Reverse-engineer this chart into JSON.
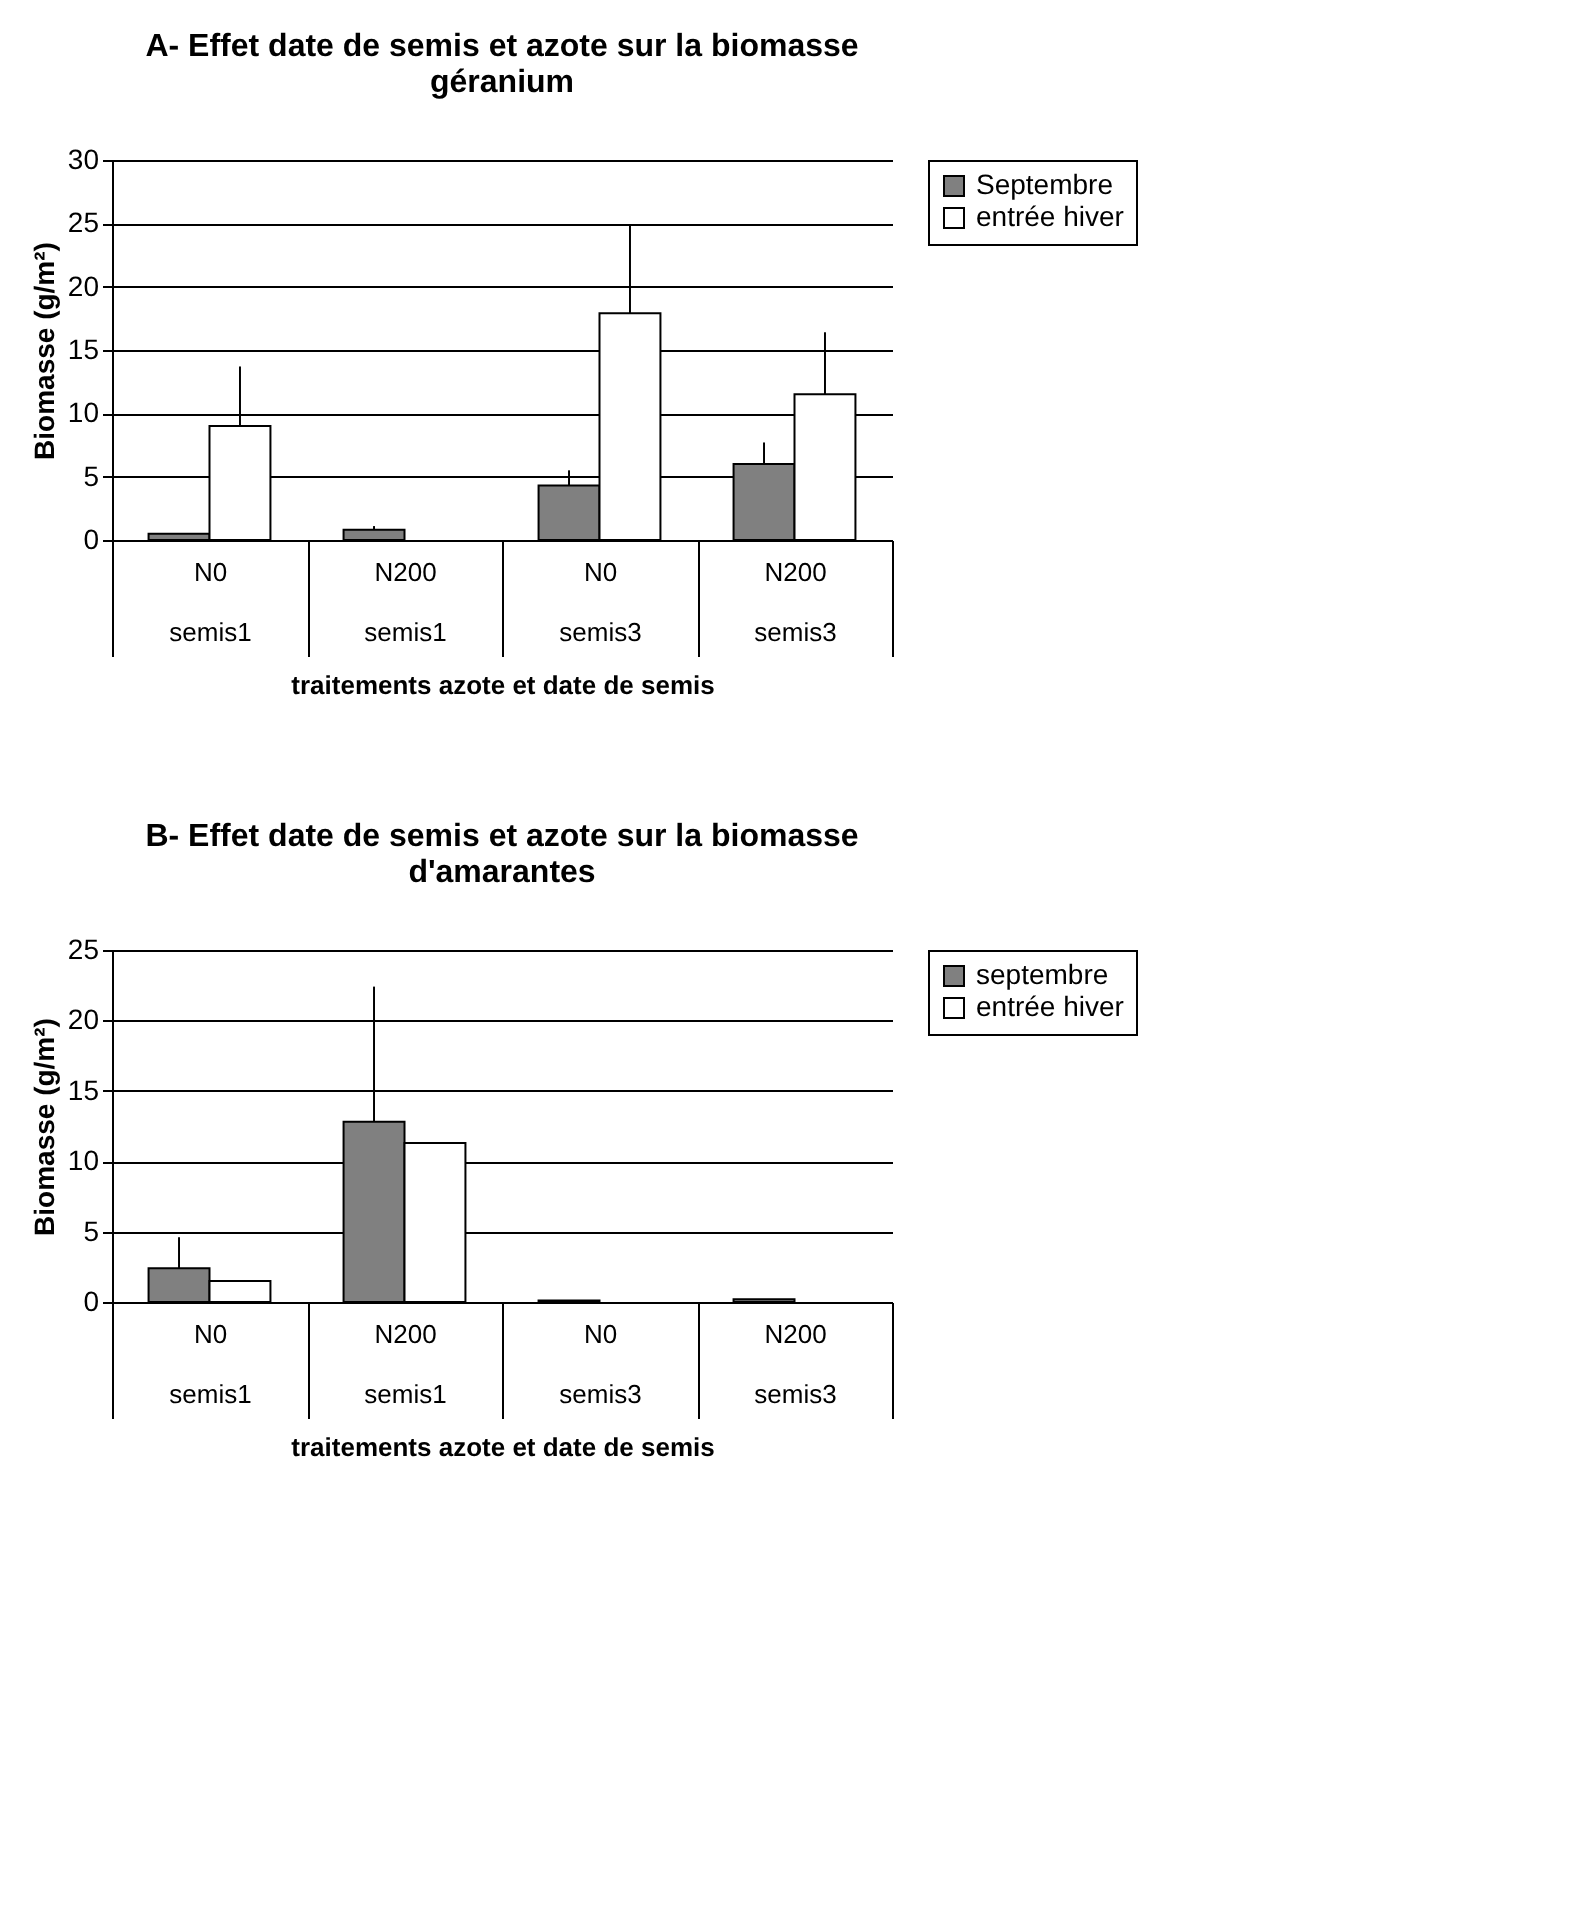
{
  "chart_data": [
    {
      "type": "bar",
      "title": "A- Effet date de semis et azote sur la biomasse géranium",
      "xlabel": "traitements azote et date de semis",
      "ylabel": "Biomasse (g/m²)",
      "categories": [
        "N0\nsemis1",
        "N200\nsemis1",
        "N0\nsemis3",
        "N200\nsemis3"
      ],
      "series": [
        {
          "name": "Septembre",
          "color": "#808080",
          "values": [
            0.5,
            0.8,
            4.3,
            6
          ],
          "errors": [
            null,
            [
              0.8,
              1.1
            ],
            [
              4.3,
              5.5
            ],
            [
              6,
              7.7
            ]
          ]
        },
        {
          "name": "entrée hiver",
          "color": "#ffffff",
          "values": [
            9,
            0,
            17.9,
            11.5
          ],
          "errors": [
            [
              9,
              13.7
            ],
            null,
            [
              17.9,
              24.8
            ],
            [
              11.5,
              16.4
            ]
          ]
        }
      ],
      "ylim": [
        0,
        30
      ],
      "yticks": [
        0,
        5,
        10,
        15,
        20,
        25,
        30
      ],
      "grid": "y",
      "legend": "right"
    },
    {
      "type": "bar",
      "title": "B- Effet date de semis et azote sur la biomasse d'amarantes",
      "xlabel": "traitements azote et date de semis",
      "ylabel": "Biomasse (g/m²)",
      "categories": [
        "N0\nsemis1",
        "N200\nsemis1",
        "N0\nsemis3",
        "N200\nsemis3"
      ],
      "series": [
        {
          "name": "septembre",
          "color": "#808080",
          "values": [
            2.4,
            12.8,
            0.1,
            0.2
          ],
          "errors": [
            [
              2.4,
              4.6
            ],
            [
              12.8,
              22.4
            ],
            null,
            null
          ]
        },
        {
          "name": "entrée hiver",
          "color": "#ffffff",
          "values": [
            1.5,
            11.3,
            0,
            0
          ]
        }
      ],
      "ylim": [
        0,
        25
      ],
      "yticks": [
        0,
        5,
        10,
        15,
        20,
        25
      ],
      "grid": "y",
      "legend": "right"
    }
  ]
}
